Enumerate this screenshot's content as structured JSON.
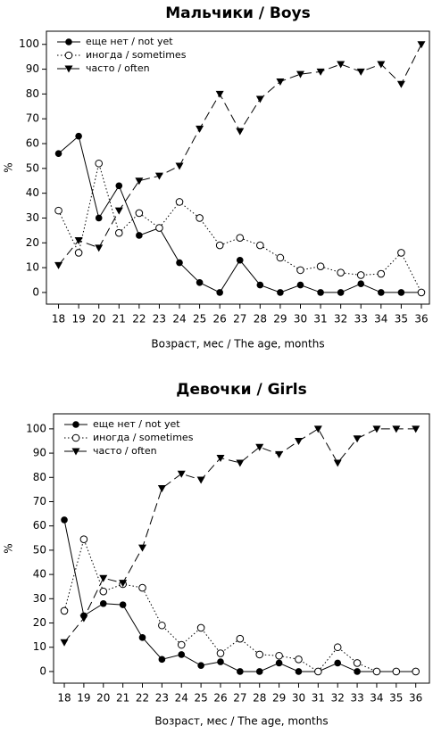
{
  "chart_data": [
    {
      "type": "line",
      "title": "Мальчики / Boys",
      "x_label": "Возраст, мес / The age, months",
      "y_label": "%",
      "x": [
        18,
        19,
        20,
        21,
        22,
        23,
        24,
        25,
        26,
        27,
        28,
        29,
        30,
        31,
        32,
        33,
        34,
        35,
        36
      ],
      "xlim": [
        17.4,
        36.4
      ],
      "xticks": [
        18,
        19,
        20,
        21,
        22,
        23,
        24,
        25,
        26,
        27,
        28,
        29,
        30,
        31,
        32,
        33,
        34,
        35,
        36
      ],
      "ylim": [
        -4.7,
        105.3
      ],
      "yticks": [
        0,
        10,
        20,
        30,
        40,
        50,
        60,
        70,
        80,
        90,
        100
      ],
      "series": [
        {
          "name": "еще нет / not yet",
          "color": "#000000",
          "values": [
            56,
            63,
            30,
            43,
            23,
            26,
            12,
            4,
            0,
            13,
            3,
            0,
            3,
            0,
            0,
            3.5,
            0,
            0,
            0
          ]
        },
        {
          "name": "иногда / sometimes",
          "color": "#000000",
          "values": [
            33,
            16,
            52,
            24,
            32,
            26,
            36.5,
            30,
            19,
            22,
            19,
            14,
            9,
            10.5,
            8,
            7,
            7.5,
            16,
            0
          ]
        },
        {
          "name": "часто / often",
          "color": "#000000",
          "values": [
            11,
            21,
            18,
            33,
            45,
            47,
            51,
            66,
            80,
            65,
            78,
            85,
            88,
            89,
            92,
            89,
            92,
            84,
            100
          ]
        }
      ]
    },
    {
      "type": "line",
      "title": "Девочки / Girls",
      "x_label": "Возраст, мес / The age, months",
      "y_label": "%",
      "x": [
        18,
        19,
        20,
        21,
        22,
        23,
        24,
        25,
        26,
        27,
        28,
        29,
        30,
        31,
        32,
        33,
        34,
        35,
        36
      ],
      "xlim": [
        17.45,
        36.7
      ],
      "xticks": [
        18,
        19,
        20,
        21,
        22,
        23,
        24,
        25,
        26,
        27,
        28,
        29,
        30,
        31,
        32,
        33,
        34,
        35,
        36
      ],
      "ylim": [
        -4.8,
        106.2
      ],
      "yticks": [
        0,
        10,
        20,
        30,
        40,
        50,
        60,
        70,
        80,
        90,
        100
      ],
      "series": [
        {
          "name": "еще нет / not yet",
          "color": "#000000",
          "values": [
            62.5,
            23,
            28,
            27.5,
            14,
            5,
            7,
            2.5,
            4,
            0,
            0,
            3.5,
            0,
            0,
            3.5,
            0,
            0,
            0,
            0
          ]
        },
        {
          "name": "иногда / sometimes",
          "color": "#000000",
          "values": [
            25,
            54.5,
            33,
            36,
            34.5,
            19,
            11,
            18,
            7.5,
            13.5,
            7,
            6.5,
            5,
            0,
            10,
            3.5,
            0,
            0,
            0
          ]
        },
        {
          "name": "часто / often",
          "color": "#000000",
          "values": [
            12,
            22,
            38.5,
            36.5,
            51,
            75.5,
            81.5,
            79,
            88,
            86,
            92.5,
            89.5,
            95,
            100,
            86,
            96,
            100,
            100,
            100
          ]
        }
      ]
    }
  ]
}
